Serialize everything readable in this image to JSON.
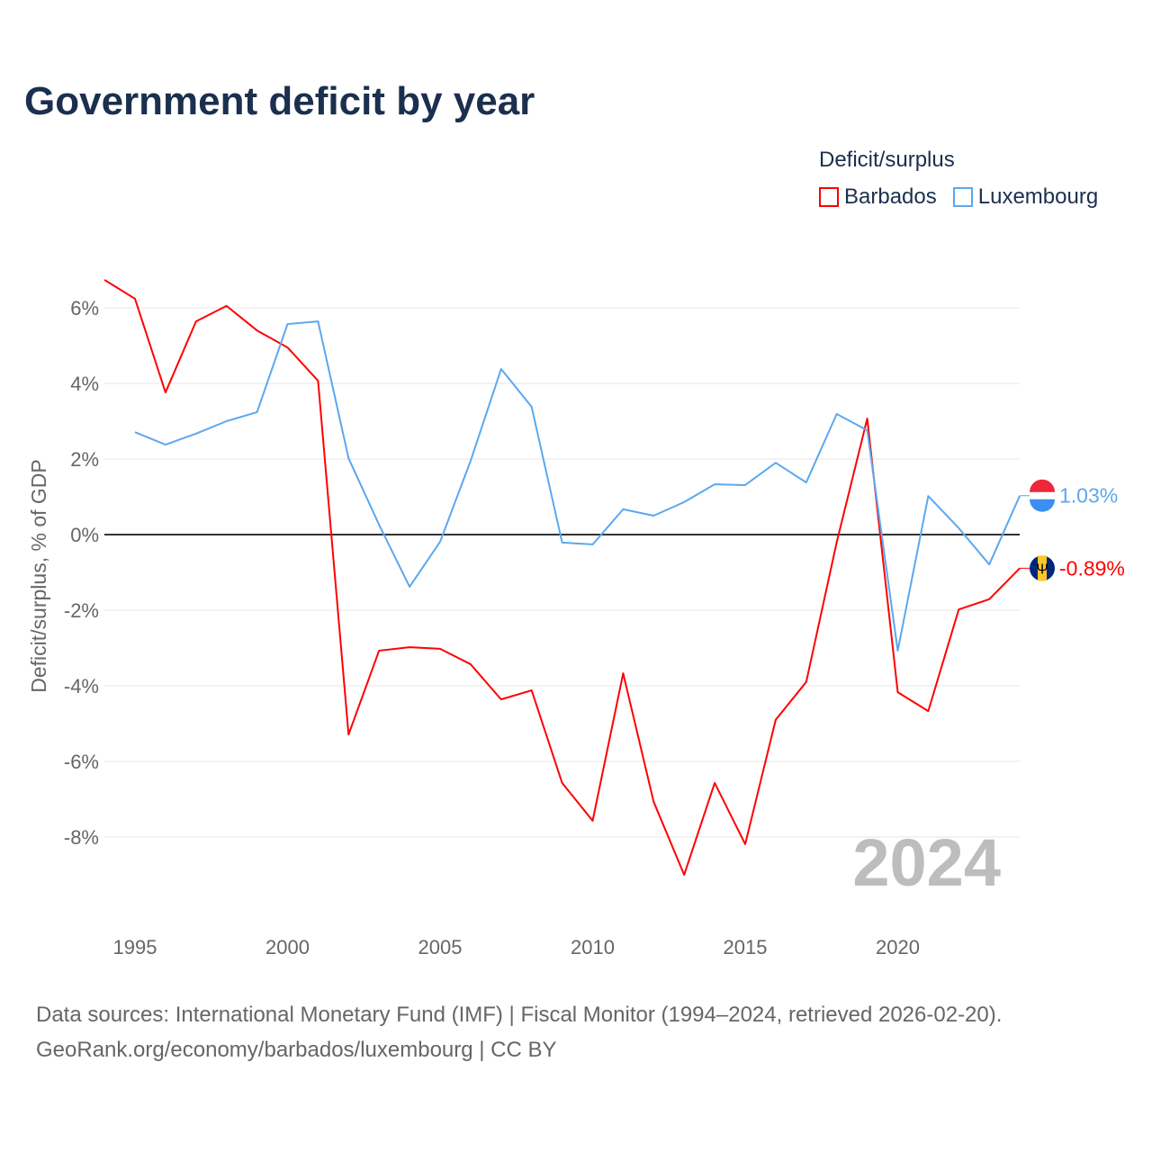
{
  "chart_data": {
    "type": "line",
    "title": "Government deficit by year",
    "legend_title": "Deficit/surplus",
    "ylabel": "Deficit/surplus, % of GDP",
    "xlabel": "",
    "ylim": [
      -10,
      7
    ],
    "xlim": [
      1994,
      2024
    ],
    "yticks": [
      -8,
      -6,
      -4,
      -2,
      0,
      2,
      4,
      6
    ],
    "ytick_labels": [
      "-8%",
      "-6%",
      "-4%",
      "-2%",
      "0%",
      "2%",
      "4%",
      "6%"
    ],
    "xticks": [
      1995,
      2000,
      2005,
      2010,
      2015,
      2020
    ],
    "xtick_labels": [
      "1995",
      "2000",
      "2005",
      "2010",
      "2015",
      "2020"
    ],
    "grid": true,
    "legend_placement": "top-right",
    "year_watermark": "2024",
    "series": [
      {
        "name": "Barbados",
        "color": "#ff0000",
        "end_label": "-0.89%",
        "x": [
          1994,
          1995,
          1996,
          1997,
          1998,
          1999,
          2000,
          2001,
          2002,
          2003,
          2004,
          2005,
          2006,
          2007,
          2008,
          2009,
          2010,
          2011,
          2012,
          2013,
          2014,
          2015,
          2016,
          2017,
          2018,
          2019,
          2020,
          2021,
          2022,
          2023,
          2024
        ],
        "values": [
          6.74,
          6.24,
          3.76,
          5.64,
          6.05,
          5.4,
          4.95,
          4.07,
          -5.29,
          -3.07,
          -2.98,
          -3.02,
          -3.43,
          -4.36,
          -4.12,
          -6.57,
          -7.57,
          -3.67,
          -7.07,
          -9.0,
          -6.57,
          -8.19,
          -4.9,
          -3.9,
          -0.2,
          3.07,
          -4.17,
          -4.67,
          -1.98,
          -1.71,
          -0.89
        ]
      },
      {
        "name": "Luxembourg",
        "color": "#5ba8ee",
        "end_label": "1.03%",
        "x": [
          1995,
          1996,
          1997,
          1998,
          1999,
          2000,
          2001,
          2002,
          2003,
          2004,
          2005,
          2006,
          2007,
          2008,
          2009,
          2010,
          2011,
          2012,
          2013,
          2014,
          2015,
          2016,
          2017,
          2018,
          2019,
          2020,
          2021,
          2022,
          2023,
          2024
        ],
        "values": [
          2.71,
          2.38,
          2.67,
          3.0,
          3.24,
          5.57,
          5.64,
          2.02,
          0.26,
          -1.38,
          -0.19,
          1.95,
          4.38,
          3.38,
          -0.21,
          -0.26,
          0.67,
          0.5,
          0.86,
          1.33,
          1.31,
          1.9,
          1.38,
          3.19,
          2.76,
          -3.07,
          1.02,
          0.17,
          -0.79,
          1.03
        ]
      }
    ]
  },
  "footer": {
    "line1": "Data sources: International Monetary Fund (IMF) | Fiscal Monitor (1994–2024, retrieved 2026-02-20).",
    "line2": "GeoRank.org/economy/barbados/luxembourg | CC BY"
  }
}
